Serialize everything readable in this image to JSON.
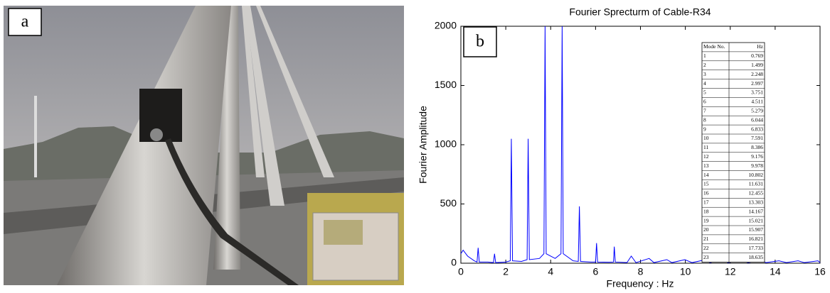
{
  "panel_a": {
    "label": "a"
  },
  "chart_data": {
    "type": "line",
    "title": "Fourier Sprecturm of Cable-R34",
    "panel_label": "b",
    "x_label": "Frequency : Hz",
    "y_label": "Fourier Amplitude",
    "xlim": [
      0,
      16
    ],
    "ylim": [
      0,
      2000
    ],
    "xticks": [
      0,
      2,
      4,
      6,
      8,
      10,
      12,
      14,
      16
    ],
    "yticks": [
      0,
      500,
      1000,
      1500,
      2000
    ],
    "series": [
      {
        "color": "#0000ff",
        "x": [
          0,
          0.1,
          0.3,
          0.6,
          0.72,
          0.769,
          0.82,
          1.2,
          1.45,
          1.499,
          1.55,
          2.0,
          2.2,
          2.248,
          2.3,
          2.7,
          2.95,
          2.997,
          3.05,
          3.5,
          3.7,
          3.751,
          3.8,
          4.2,
          4.46,
          4.511,
          4.56,
          5.0,
          5.23,
          5.279,
          5.33,
          5.8,
          6.0,
          6.044,
          6.09,
          6.6,
          6.8,
          6.833,
          6.88,
          7.4,
          7.591,
          7.8,
          8.386,
          8.6,
          9.176,
          9.4,
          9.978,
          10.3,
          10.802,
          11.1,
          11.631,
          11.9,
          12.455,
          12.8,
          13.303,
          13.6,
          14.167,
          14.5,
          15.021,
          15.3,
          15.907,
          16
        ],
        "values": [
          80,
          110,
          60,
          20,
          10,
          130,
          10,
          10,
          5,
          80,
          5,
          10,
          20,
          1050,
          20,
          15,
          30,
          1050,
          30,
          40,
          80,
          2000,
          80,
          40,
          80,
          2000,
          80,
          20,
          15,
          480,
          15,
          10,
          10,
          170,
          10,
          8,
          10,
          140,
          10,
          5,
          60,
          5,
          40,
          5,
          30,
          5,
          30,
          5,
          25,
          5,
          25,
          5,
          20,
          5,
          20,
          5,
          20,
          5,
          20,
          5,
          20,
          5
        ]
      }
    ]
  },
  "table": {
    "columns": [
      "Mode No.",
      "Hz"
    ],
    "rows": [
      [
        1,
        0.769
      ],
      [
        2,
        1.499
      ],
      [
        3,
        2.248
      ],
      [
        4,
        2.997
      ],
      [
        5,
        3.751
      ],
      [
        6,
        4.511
      ],
      [
        7,
        5.279
      ],
      [
        8,
        6.044
      ],
      [
        9,
        6.833
      ],
      [
        10,
        7.591
      ],
      [
        11,
        8.386
      ],
      [
        12,
        9.176
      ],
      [
        13,
        9.978
      ],
      [
        14,
        10.802
      ],
      [
        15,
        11.631
      ],
      [
        16,
        12.455
      ],
      [
        17,
        13.303
      ],
      [
        18,
        14.167
      ],
      [
        19,
        15.021
      ],
      [
        20,
        15.907
      ],
      [
        21,
        16.821
      ],
      [
        22,
        17.733
      ],
      [
        23,
        18.635
      ]
    ]
  }
}
